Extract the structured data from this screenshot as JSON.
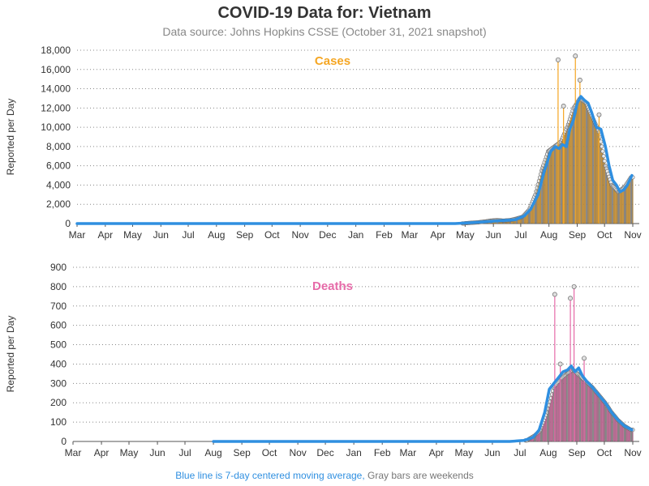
{
  "header": {
    "title": "COVID-19 Data for: Vietnam",
    "subtitle": "Data source: Johns Hopkins CSSE (October 31, 2021 snapshot)"
  },
  "footer": {
    "blue_text": "Blue line is 7-day centered moving average,",
    "gray_text": "Gray bars are weekends"
  },
  "colors": {
    "cases_bar": "#f5a623",
    "deaths_bar": "#e66aa8",
    "moving_average": "#2f8fe0",
    "weekend_bar": "#999999"
  },
  "chart_data": [
    {
      "type": "bar",
      "title": "Cases",
      "ylabel": "Reported per Day",
      "ylim": [
        0,
        18000
      ],
      "yticks": [
        "0",
        "2,000",
        "4,000",
        "6,000",
        "8,000",
        "10,000",
        "12,000",
        "14,000",
        "16,000",
        "18,000"
      ],
      "xticks": [
        "Mar",
        "Apr",
        "May",
        "Jun",
        "Jul",
        "Aug",
        "Sep",
        "Oct",
        "Nov",
        "Dec",
        "Jan",
        "Feb",
        "Mar",
        "Apr",
        "May",
        "Jun",
        "Jul",
        "Aug",
        "Sep",
        "Oct",
        "Nov"
      ],
      "grid": "horizontal dotted",
      "series": [
        {
          "kind": "weekly_reported_per_day",
          "x": [
            "2021-05-01",
            "2021-05-08",
            "2021-05-15",
            "2021-05-22",
            "2021-05-29",
            "2021-06-05",
            "2021-06-12",
            "2021-06-19",
            "2021-06-26",
            "2021-07-03",
            "2021-07-10",
            "2021-07-17",
            "2021-07-24",
            "2021-07-31",
            "2021-08-07",
            "2021-08-14",
            "2021-08-21",
            "2021-08-28",
            "2021-09-04",
            "2021-09-11",
            "2021-09-18",
            "2021-09-25",
            "2021-10-02",
            "2021-10-09",
            "2021-10-16",
            "2021-10-23",
            "2021-10-30"
          ],
          "y": [
            30,
            80,
            120,
            200,
            300,
            350,
            300,
            350,
            500,
            700,
            1400,
            3000,
            5500,
            7500,
            8000,
            8500,
            10000,
            12000,
            13000,
            12500,
            11000,
            9500,
            6000,
            4000,
            3300,
            3800,
            4800
          ]
        },
        {
          "name": "7-day centered moving average",
          "kind": "line",
          "x": [
            "2020-03-01",
            "2021-04-20",
            "2021-05-10",
            "2021-05-25",
            "2021-06-10",
            "2021-06-25",
            "2021-07-05",
            "2021-07-12",
            "2021-07-20",
            "2021-07-27",
            "2021-08-03",
            "2021-08-08",
            "2021-08-12",
            "2021-08-16",
            "2021-08-20",
            "2021-08-24",
            "2021-08-28",
            "2021-09-01",
            "2021-09-05",
            "2021-09-09",
            "2021-09-13",
            "2021-09-17",
            "2021-09-22",
            "2021-09-27",
            "2021-10-02",
            "2021-10-06",
            "2021-10-10",
            "2021-10-14",
            "2021-10-18",
            "2021-10-22",
            "2021-10-26",
            "2021-10-31"
          ],
          "y": [
            0,
            0,
            100,
            200,
            300,
            400,
            800,
            1500,
            3000,
            5500,
            7500,
            8000,
            7800,
            8200,
            8000,
            9800,
            10800,
            12500,
            13200,
            12800,
            12500,
            11500,
            10000,
            9800,
            8000,
            6000,
            4500,
            4000,
            3300,
            3500,
            4000,
            5000
          ]
        },
        {
          "name": "daily spikes",
          "kind": "points",
          "x": [
            "2021-08-11",
            "2021-08-17",
            "2021-08-30",
            "2021-09-04",
            "2021-09-25"
          ],
          "y": [
            17000,
            12200,
            17400,
            14900,
            11300
          ]
        }
      ]
    },
    {
      "type": "bar",
      "title": "Deaths",
      "ylabel": "Reported per Day",
      "ylim": [
        0,
        900
      ],
      "yticks": [
        "0",
        "100",
        "200",
        "300",
        "400",
        "500",
        "600",
        "700",
        "800",
        "900"
      ],
      "xticks": [
        "Mar",
        "Apr",
        "May",
        "Jun",
        "Jul",
        "Aug",
        "Sep",
        "Oct",
        "Nov",
        "Dec",
        "Jan",
        "Feb",
        "Mar",
        "Apr",
        "May",
        "Jun",
        "Jul",
        "Aug",
        "Sep",
        "Oct",
        "Nov"
      ],
      "grid": "horizontal dotted",
      "series": [
        {
          "kind": "weekly_reported_per_day",
          "x": [
            "2021-07-10",
            "2021-07-17",
            "2021-07-24",
            "2021-07-31",
            "2021-08-07",
            "2021-08-14",
            "2021-08-21",
            "2021-08-28",
            "2021-09-04",
            "2021-09-11",
            "2021-09-18",
            "2021-09-25",
            "2021-10-02",
            "2021-10-09",
            "2021-10-16",
            "2021-10-23",
            "2021-10-30"
          ],
          "y": [
            10,
            30,
            60,
            150,
            280,
            320,
            350,
            370,
            340,
            310,
            280,
            240,
            200,
            150,
            110,
            80,
            60
          ]
        },
        {
          "name": "7-day centered moving average",
          "kind": "line",
          "x": [
            "2020-08-01",
            "2021-06-20",
            "2021-07-05",
            "2021-07-15",
            "2021-07-22",
            "2021-07-28",
            "2021-08-02",
            "2021-08-07",
            "2021-08-12",
            "2021-08-17",
            "2021-08-22",
            "2021-08-26",
            "2021-08-30",
            "2021-09-03",
            "2021-09-07",
            "2021-09-12",
            "2021-09-18",
            "2021-09-25",
            "2021-10-02",
            "2021-10-09",
            "2021-10-16",
            "2021-10-23",
            "2021-10-31"
          ],
          "y": [
            0,
            0,
            5,
            20,
            60,
            150,
            270,
            300,
            330,
            360,
            370,
            390,
            360,
            380,
            340,
            310,
            280,
            240,
            200,
            150,
            110,
            80,
            60
          ]
        },
        {
          "name": "daily spikes",
          "kind": "points",
          "x": [
            "2021-08-08",
            "2021-08-14",
            "2021-08-25",
            "2021-08-29",
            "2021-09-09"
          ],
          "y": [
            760,
            400,
            740,
            800,
            430
          ]
        }
      ]
    }
  ]
}
